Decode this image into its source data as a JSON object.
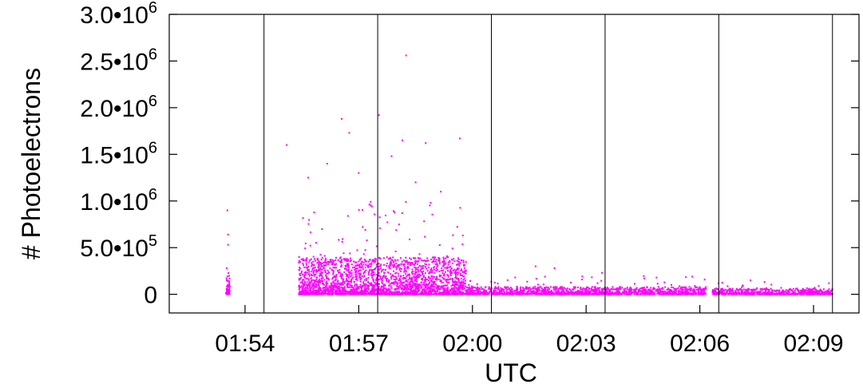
{
  "chart_data": {
    "type": "scatter",
    "title": "",
    "xlabel": "UTC",
    "ylabel": "# Photoelectrons",
    "xlim": [
      "01:52:00",
      "02:10:12"
    ],
    "ylim": [
      -200000,
      3000000
    ],
    "x_ticks": [
      "01:54",
      "01:57",
      "02:00",
      "02:03",
      "02:06",
      "02:09"
    ],
    "y_ticks": [
      {
        "value": 0,
        "mantissa": "0",
        "exponent": ""
      },
      {
        "value": 500000,
        "mantissa": "5.0•",
        "exponent": "5"
      },
      {
        "value": 1000000,
        "mantissa": "1.0•",
        "exponent": "6"
      },
      {
        "value": 1500000,
        "mantissa": "1.5•",
        "exponent": "6"
      },
      {
        "value": 2000000,
        "mantissa": "2.0•",
        "exponent": "6"
      },
      {
        "value": 2500000,
        "mantissa": "2.5•",
        "exponent": "6"
      },
      {
        "value": 3000000,
        "mantissa": "3.0•",
        "exponent": "6"
      }
    ],
    "vertical_lines": [
      "01:54:30",
      "01:57:30",
      "02:00:30",
      "02:03:30",
      "02:06:30",
      "02:09:30"
    ],
    "marker_color": "#ff00ff",
    "series": [
      {
        "segments": [
          {
            "start": "01:53:30",
            "end": "01:53:36",
            "base_max": 200000,
            "n": 60
          },
          {
            "start": "01:55:25",
            "end": "01:59:50",
            "base_max": 400000,
            "n": 2600
          },
          {
            "start": "01:59:50",
            "end": "02:06:10",
            "base_max": 80000,
            "n": 1500
          },
          {
            "start": "02:06:20",
            "end": "02:09:30",
            "base_max": 60000,
            "n": 700
          }
        ],
        "outliers": [
          {
            "x": "01:53:32",
            "y": 900000
          },
          {
            "x": "01:53:33",
            "y": 640000
          },
          {
            "x": "01:53:33",
            "y": 530000
          },
          {
            "x": "01:53:31",
            "y": 280000
          },
          {
            "x": "01:55:06",
            "y": 1600000
          },
          {
            "x": "01:56:33",
            "y": 1880000
          },
          {
            "x": "01:56:45",
            "y": 1730000
          },
          {
            "x": "01:57:32",
            "y": 1920000
          },
          {
            "x": "01:57:52",
            "y": 1480000
          },
          {
            "x": "01:58:09",
            "y": 1650000
          },
          {
            "x": "01:58:15",
            "y": 2560000
          },
          {
            "x": "01:58:46",
            "y": 1620000
          },
          {
            "x": "01:59:40",
            "y": 1670000
          },
          {
            "x": "01:56:10",
            "y": 1400000
          },
          {
            "x": "01:57:00",
            "y": 1300000
          },
          {
            "x": "01:58:30",
            "y": 1200000
          },
          {
            "x": "01:59:10",
            "y": 1100000
          },
          {
            "x": "01:55:40",
            "y": 1250000
          },
          {
            "x": "02:01:40",
            "y": 300000
          },
          {
            "x": "02:03:25",
            "y": 230000
          },
          {
            "x": "02:02:10",
            "y": 280000
          },
          {
            "x": "02:05:15",
            "y": 100000
          }
        ]
      }
    ]
  }
}
